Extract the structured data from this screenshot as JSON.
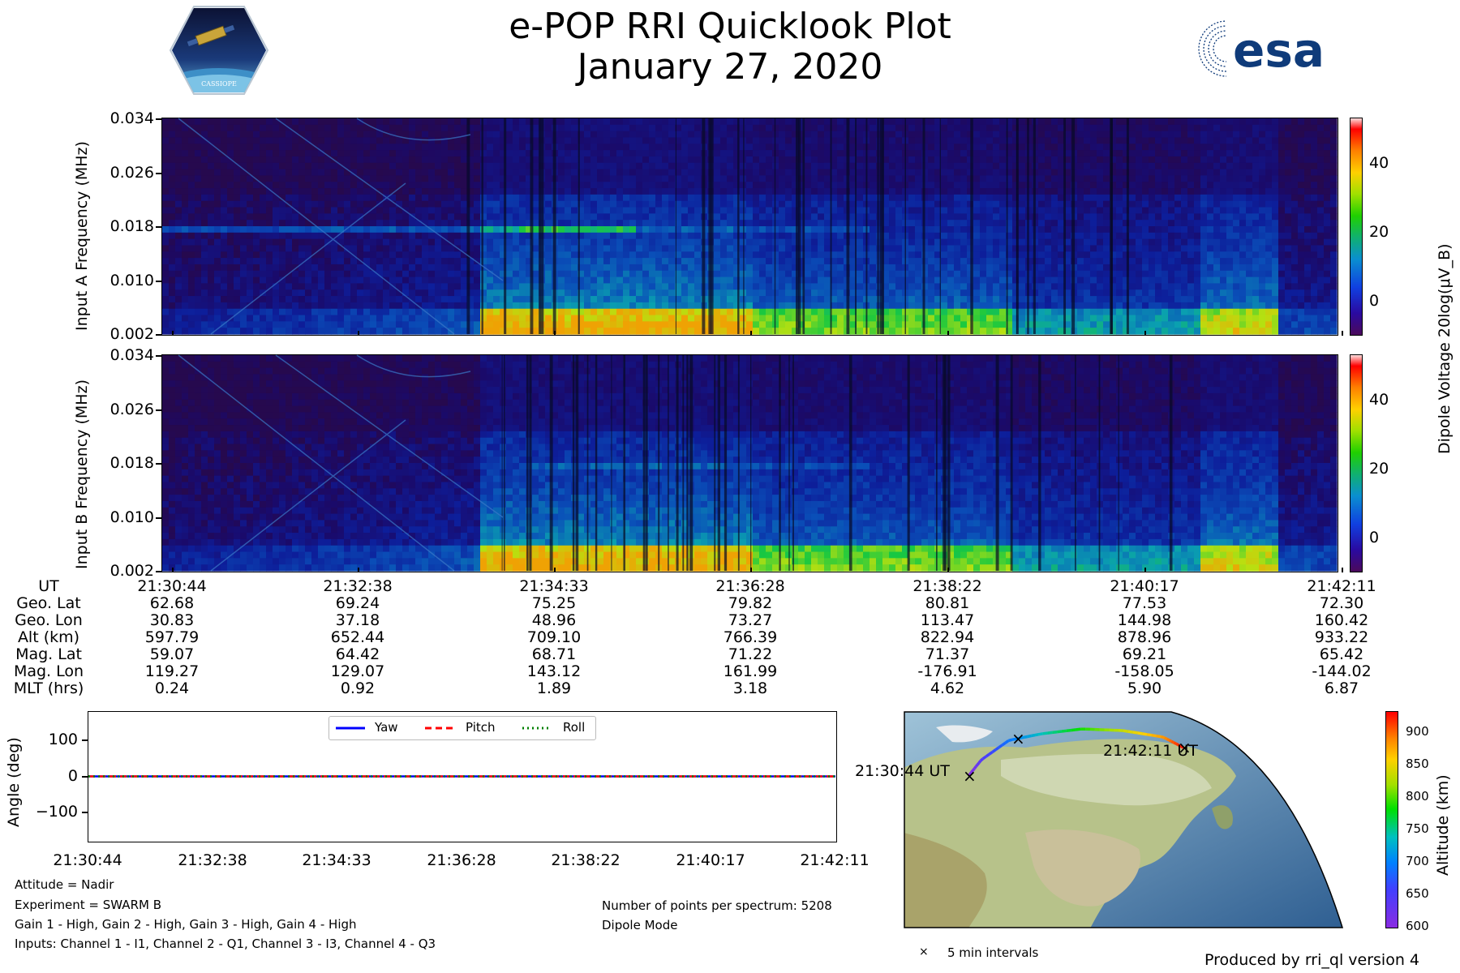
{
  "header": {
    "title": "e-POP RRI Quicklook Plot",
    "date": "January 27, 2020",
    "cassiope_logo_text": "CASSIOPE",
    "esa_logo_text": "esa"
  },
  "chart_data": [
    {
      "type": "heatmap",
      "title": "",
      "ylabel": "Input A Frequency (MHz)",
      "ylim": [
        0.002,
        0.034
      ],
      "yticks": [
        "0.034",
        "0.026",
        "0.018",
        "0.010",
        "0.002"
      ],
      "colorbar_label": "Dipole Voltage 20log(μV_B)",
      "colorbar_ticks": [
        "40",
        "20",
        "0"
      ],
      "clim": [
        -10,
        53
      ]
    },
    {
      "type": "heatmap",
      "title": "",
      "ylabel": "Input B Frequency (MHz)",
      "ylim": [
        0.002,
        0.034
      ],
      "yticks": [
        "0.034",
        "0.026",
        "0.018",
        "0.010",
        "0.002"
      ],
      "colorbar_ticks": [
        "40",
        "20",
        "0"
      ],
      "clim": [
        -10,
        53
      ]
    },
    {
      "type": "line",
      "ylabel": "Angle (deg)",
      "ylim": [
        -180,
        180
      ],
      "yticks": [
        "100",
        "0",
        "−100"
      ],
      "x": [
        "21:30:44",
        "21:32:38",
        "21:34:33",
        "21:36:28",
        "21:38:22",
        "21:40:17",
        "21:42:11"
      ],
      "series": [
        {
          "name": "Yaw",
          "values": [
            0,
            0,
            0,
            0,
            0,
            0,
            0
          ],
          "color": "#0000ff",
          "style": "solid"
        },
        {
          "name": "Pitch",
          "values": [
            0,
            0,
            0,
            0,
            0,
            0,
            0
          ],
          "color": "#ff0000",
          "style": "dashed"
        },
        {
          "name": "Roll",
          "values": [
            0,
            0,
            0,
            0,
            0,
            0,
            0
          ],
          "color": "#008000",
          "style": "dotted"
        }
      ],
      "legend": "top-center"
    },
    {
      "type": "scatter",
      "colorbar_label": "Altitude (km)",
      "colorbar_ticks": [
        "900",
        "850",
        "800",
        "750",
        "700",
        "650",
        "600"
      ],
      "clim": [
        597,
        933
      ],
      "start_label": "21:30:44 UT",
      "end_label": "21:42:11 UT",
      "marker_legend": "5 min intervals"
    }
  ],
  "ephemeris": {
    "labels": [
      "UT",
      "Geo. Lat",
      "Geo. Lon",
      "Alt (km)",
      "Mag. Lat",
      "Mag. Lon",
      "MLT (hrs)"
    ],
    "columns": [
      [
        "21:30:44",
        "62.68",
        "30.83",
        "597.79",
        "59.07",
        "119.27",
        "0.24"
      ],
      [
        "21:32:38",
        "69.24",
        "37.18",
        "652.44",
        "64.42",
        "129.07",
        "0.92"
      ],
      [
        "21:34:33",
        "75.25",
        "48.96",
        "709.10",
        "68.71",
        "143.12",
        "1.89"
      ],
      [
        "21:36:28",
        "79.82",
        "73.27",
        "766.39",
        "71.22",
        "161.99",
        "3.18"
      ],
      [
        "21:38:22",
        "80.81",
        "113.47",
        "822.94",
        "71.37",
        "-176.91",
        "4.62"
      ],
      [
        "21:40:17",
        "77.53",
        "144.98",
        "878.96",
        "69.21",
        "-158.05",
        "5.90"
      ],
      [
        "21:42:11",
        "72.30",
        "160.42",
        "933.22",
        "65.42",
        "-144.02",
        "6.87"
      ]
    ]
  },
  "info": {
    "attitude": "Attitude = Nadir",
    "experiment": "Experiment = SWARM B",
    "gain": "Gain 1 - High, Gain 2 - High, Gain 3 - High, Gain 4 - High",
    "inputs": "Inputs: Channel 1 - I1, Channel 2 - Q1, Channel 3 - I3, Channel 4 - Q3",
    "points": "Number of points per spectrum: 5208",
    "mode": "Dipole Mode",
    "produced_by": "Produced by rri_ql version 4"
  }
}
